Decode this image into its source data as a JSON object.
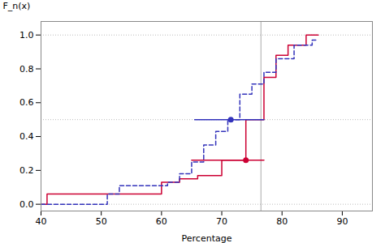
{
  "chart_data": {
    "type": "line",
    "xlabel": "Percentage",
    "ylabel": "F_n(x)",
    "xlim": [
      40,
      95
    ],
    "xticks": [
      40,
      50,
      60,
      70,
      80,
      90
    ],
    "ylim": [
      -0.04,
      1.08
    ],
    "yticks": [
      {
        "value": 0.0,
        "label": "0.0"
      },
      0.2,
      0.4,
      0.6,
      0.8,
      {
        "value": 1.0,
        "label": "1.0"
      }
    ],
    "hlines": {
      "values": [
        0.0,
        0.5,
        1.0
      ],
      "color": "#aaaaaa",
      "line_style": "dotted"
    },
    "vlines": {
      "values": [
        76.5
      ],
      "color": "#aaaaaa",
      "line_style": "solid"
    },
    "series": [
      {
        "color": "#cc0033",
        "line_style": "solid",
        "x": [
          40,
          41,
          41,
          60,
          60,
          63,
          63,
          66,
          66,
          70,
          70,
          74,
          74,
          77,
          77,
          79,
          79,
          81,
          81,
          84,
          84,
          86
        ],
        "values": [
          0.0,
          0.0,
          0.06,
          0.06,
          0.13,
          0.13,
          0.15,
          0.15,
          0.17,
          0.17,
          0.26,
          0.26,
          0.5,
          0.5,
          0.75,
          0.75,
          0.88,
          0.88,
          0.94,
          0.94,
          1.0,
          1.0
        ],
        "median": {
          "x": 74.0,
          "y": 0.26,
          "low": 65.0,
          "high": 77.0
        }
      },
      {
        "color": "#3333bb",
        "line_style": "dashed",
        "x": [
          40,
          51,
          51,
          53,
          53,
          61,
          61,
          63,
          63,
          65,
          65,
          67,
          67,
          69,
          69,
          71,
          71,
          73,
          73,
          75,
          75,
          77,
          77,
          79,
          79,
          82,
          82,
          85,
          85,
          86
        ],
        "values": [
          0.0,
          0.0,
          0.06,
          0.06,
          0.11,
          0.11,
          0.13,
          0.13,
          0.18,
          0.18,
          0.25,
          0.25,
          0.35,
          0.35,
          0.43,
          0.43,
          0.5,
          0.5,
          0.65,
          0.65,
          0.71,
          0.71,
          0.78,
          0.78,
          0.86,
          0.86,
          0.94,
          0.94,
          0.97,
          0.97
        ],
        "median": {
          "x": 71.5,
          "y": 0.5,
          "low": 65.5,
          "high": 77.0
        }
      }
    ]
  }
}
